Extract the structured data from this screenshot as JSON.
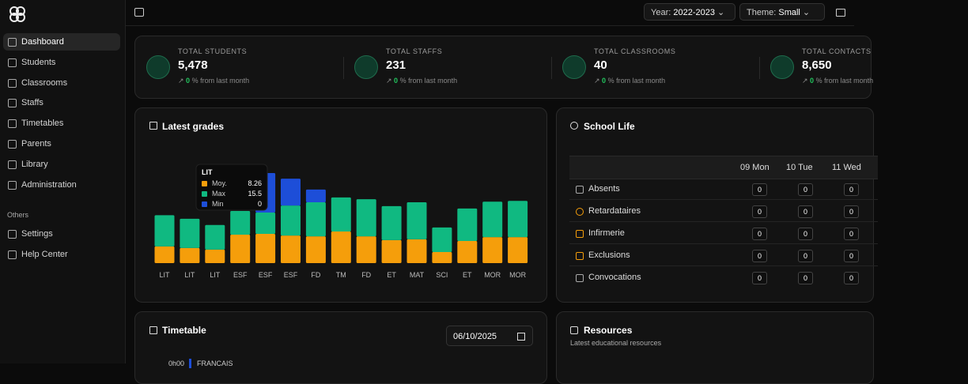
{
  "sidebar": {
    "nav": [
      "Dashboard",
      "Students",
      "Classrooms",
      "Staffs",
      "Timetables",
      "Parents",
      "Library",
      "Administration"
    ],
    "section": "Others",
    "others": [
      "Settings",
      "Help Center"
    ]
  },
  "topbar": {
    "year_label": "Year:",
    "year": "2022-2023",
    "theme_label": "Theme:",
    "theme": "Small"
  },
  "stats": [
    {
      "label": "TOTAL STUDENTS",
      "value": "5,478",
      "change": "0",
      "change_text": "% from last month"
    },
    {
      "label": "TOTAL STAFFS",
      "value": "231",
      "change": "0",
      "change_text": "% from last month"
    },
    {
      "label": "TOTAL CLASSROOMS",
      "value": "40",
      "change": "0",
      "change_text": "% from last month"
    },
    {
      "label": "TOTAL CONTACTS",
      "value": "8,650",
      "change": "0",
      "change_text": "% from last month"
    }
  ],
  "chart_data": {
    "type": "bar",
    "stacked": true,
    "title": "Latest grades",
    "categories": [
      "LIT",
      "LIT",
      "LIT",
      "ESF",
      "ESF",
      "ESF",
      "FD",
      "TM",
      "FD",
      "ET",
      "MAT",
      "SCI",
      "ET",
      "MOR",
      "MOR"
    ],
    "series": [
      {
        "name": "Moy.",
        "color": "#f59e0b",
        "values": [
          8.26,
          7.5,
          6.7,
          14.1,
          14.5,
          13.7,
          13.3,
          15.7,
          13.3,
          11.4,
          11.8,
          5.5,
          11,
          12.9,
          12.9
        ]
      },
      {
        "name": "Max",
        "color": "#10b981",
        "values": [
          15.5,
          14.5,
          12.2,
          11.8,
          10.6,
          14.9,
          16.9,
          16.9,
          18.4,
          16.9,
          18.4,
          12.2,
          16.1,
          17.6,
          18
        ]
      },
      {
        "name": "Min",
        "color": "#1d4ed8",
        "values": [
          0,
          0,
          0,
          0,
          19.6,
          13.3,
          6.3,
          0,
          0,
          0,
          0,
          0,
          0,
          0,
          0
        ]
      }
    ],
    "tooltip": {
      "category_index": 0
    }
  },
  "school_life": {
    "title": "School Life",
    "columns": [
      "09 Mon",
      "10 Tue",
      "11 Wed"
    ],
    "rows": [
      {
        "label": "Absents",
        "values": [
          "0",
          "0",
          "0"
        ]
      },
      {
        "label": "Retardataires",
        "values": [
          "0",
          "0",
          "0"
        ]
      },
      {
        "label": "Infirmerie",
        "values": [
          "0",
          "0",
          "0"
        ]
      },
      {
        "label": "Exclusions",
        "values": [
          "0",
          "0",
          "0"
        ]
      },
      {
        "label": "Convocations",
        "values": [
          "0",
          "0",
          "0"
        ]
      }
    ]
  },
  "timetable": {
    "title": "Timetable",
    "date": "06/10/2025",
    "entries": [
      {
        "time": "0h00",
        "subject": "FRANCAIS"
      }
    ]
  },
  "resources": {
    "title": "Resources",
    "subtitle": "Latest educational resources"
  }
}
